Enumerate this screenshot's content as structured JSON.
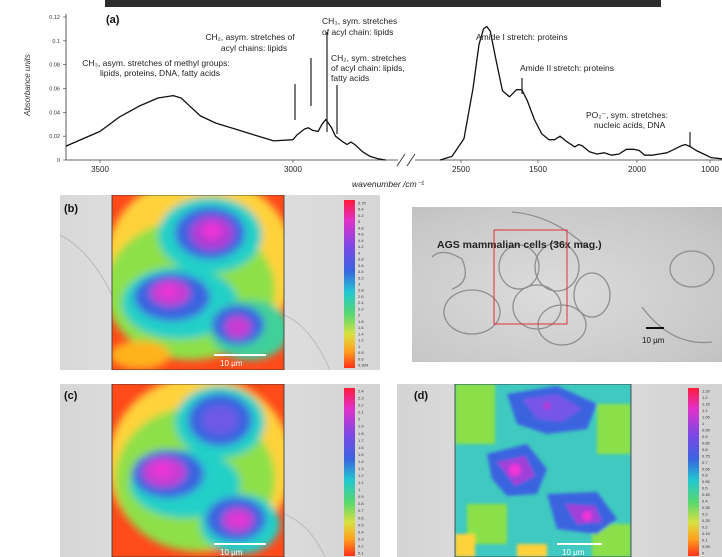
{
  "panels": {
    "a": {
      "label": "(a)",
      "chart_data": {
        "type": "line",
        "ylabel": "Absorbance units",
        "xlabel": "wavenumber /cm⁻¹",
        "yticks": [
          "0",
          "0.02",
          "0.04",
          "0.06",
          "0.08",
          "0.1",
          "0.12"
        ],
        "xticks": [
          "3500",
          "3000",
          "2500",
          "2000",
          "1500",
          "1000"
        ],
        "ylim": [
          0,
          0.12
        ],
        "series": [
          {
            "x": [
              3780,
              3700,
              3600,
              3500,
              3450,
              3400,
              3350,
              3310,
              3290,
              3270,
              3240,
              3200,
              3150,
              3100,
              3050,
              3000,
              2990,
              2970,
              2960,
              2950,
              2935,
              2925,
              2915,
              2900,
              2890,
              2870,
              2860,
              2850,
              2840,
              2820,
              2800,
              2780,
              2760
            ],
            "y": [
              0.001,
              0.003,
              0.01,
              0.024,
              0.036,
              0.045,
              0.052,
              0.054,
              0.052,
              0.046,
              0.037,
              0.031,
              0.026,
              0.021,
              0.016,
              0.017,
              0.021,
              0.026,
              0.027,
              0.025,
              0.024,
              0.03,
              0.034,
              0.027,
              0.02,
              0.015,
              0.013,
              0.015,
              0.013,
              0.007,
              0.003,
              0.001,
              0
            ]
          },
          {
            "x": [
              1800,
              1760,
              1720,
              1690,
              1670,
              1655,
              1645,
              1635,
              1620,
              1600,
              1580,
              1560,
              1545,
              1530,
              1510,
              1490,
              1470,
              1455,
              1440,
              1420,
              1400,
              1390,
              1380,
              1360,
              1340,
              1320,
              1300,
              1280,
              1260,
              1240,
              1225,
              1210,
              1190,
              1170,
              1150,
              1130,
              1110,
              1100,
              1085,
              1070,
              1050,
              1030,
              1000
            ],
            "y": [
              0,
              0.003,
              0.018,
              0.06,
              0.097,
              0.11,
              0.112,
              0.108,
              0.086,
              0.058,
              0.053,
              0.059,
              0.059,
              0.05,
              0.034,
              0.022,
              0.017,
              0.017,
              0.02,
              0.015,
              0.011,
              0.013,
              0.012,
              0.007,
              0.005,
              0.006,
              0.004,
              0.005,
              0.009,
              0.009,
              0.008,
              0.004,
              0.004,
              0.005,
              0.006,
              0.009,
              0.012,
              0.013,
              0.011,
              0.008,
              0.005,
              0.002,
              0.001
            ]
          }
        ]
      },
      "annotations": {
        "ch3_asym": [
          "CH₃, asym. stretches of methyl groups:",
          "lipids, proteins, DNA, fatty acids"
        ],
        "ch2_asym": [
          "CH₂, asym. stretches of",
          "acyl chains: lipids"
        ],
        "ch3_sym": [
          "CH₃, sym. stretches",
          "of acyl chain: lipids"
        ],
        "ch2_sym": [
          "CH₂, sym. stretches",
          "of acyl chain: lipids,",
          "fatty acids"
        ],
        "amide1": "Amide I stretch: proteins",
        "amide2": "Amide II stretch: proteins",
        "po2": [
          "PO₂⁻, sym. stretches:",
          "nucleic acids, DNA"
        ]
      }
    },
    "b": {
      "label": "(b)",
      "scalebar": "10 μm",
      "colorbar_ticks": [
        "5.75",
        "5.4",
        "5.2",
        "5",
        "4.8",
        "4.6",
        "4.4",
        "4.2",
        "4",
        "3.8",
        "3.6",
        "3.4",
        "3.2",
        "3",
        "2.8",
        "2.6",
        "2.4",
        "2.2",
        "2",
        "1.8",
        "1.6",
        "1.4",
        "1.2",
        "1",
        "0.8",
        "0.6",
        "0.304"
      ]
    },
    "c": {
      "label": "(c)",
      "scalebar": "10 μm",
      "colorbar_ticks": [
        "2.4",
        "2.3",
        "2.2",
        "2.1",
        "2",
        "1.9",
        "1.8",
        "1.7",
        "1.6",
        "1.5",
        "1.4",
        "1.3",
        "1.2",
        "1.1",
        "1",
        "0.9",
        "0.8",
        "0.7",
        "0.6",
        "0.5",
        "0.4",
        "0.3",
        "0.2",
        "0.1"
      ]
    },
    "d": {
      "label": "(d)",
      "scalebar": "10 μm",
      "colorbar_ticks": [
        "1.29",
        "1.2",
        "1.15",
        "1.1",
        "1.05",
        "1",
        "0.95",
        "0.9",
        "0.85",
        "0.8",
        "0.75",
        "0.7",
        "0.65",
        "0.6",
        "0.55",
        "0.5",
        "0.45",
        "0.4",
        "0.35",
        "0.3",
        "0.25",
        "0.2",
        "0.15",
        "0.1",
        "0.05",
        "0"
      ]
    },
    "photo": {
      "title": "AGS mammalian cells (36x mag.)",
      "scalebar": "10 µm"
    }
  }
}
